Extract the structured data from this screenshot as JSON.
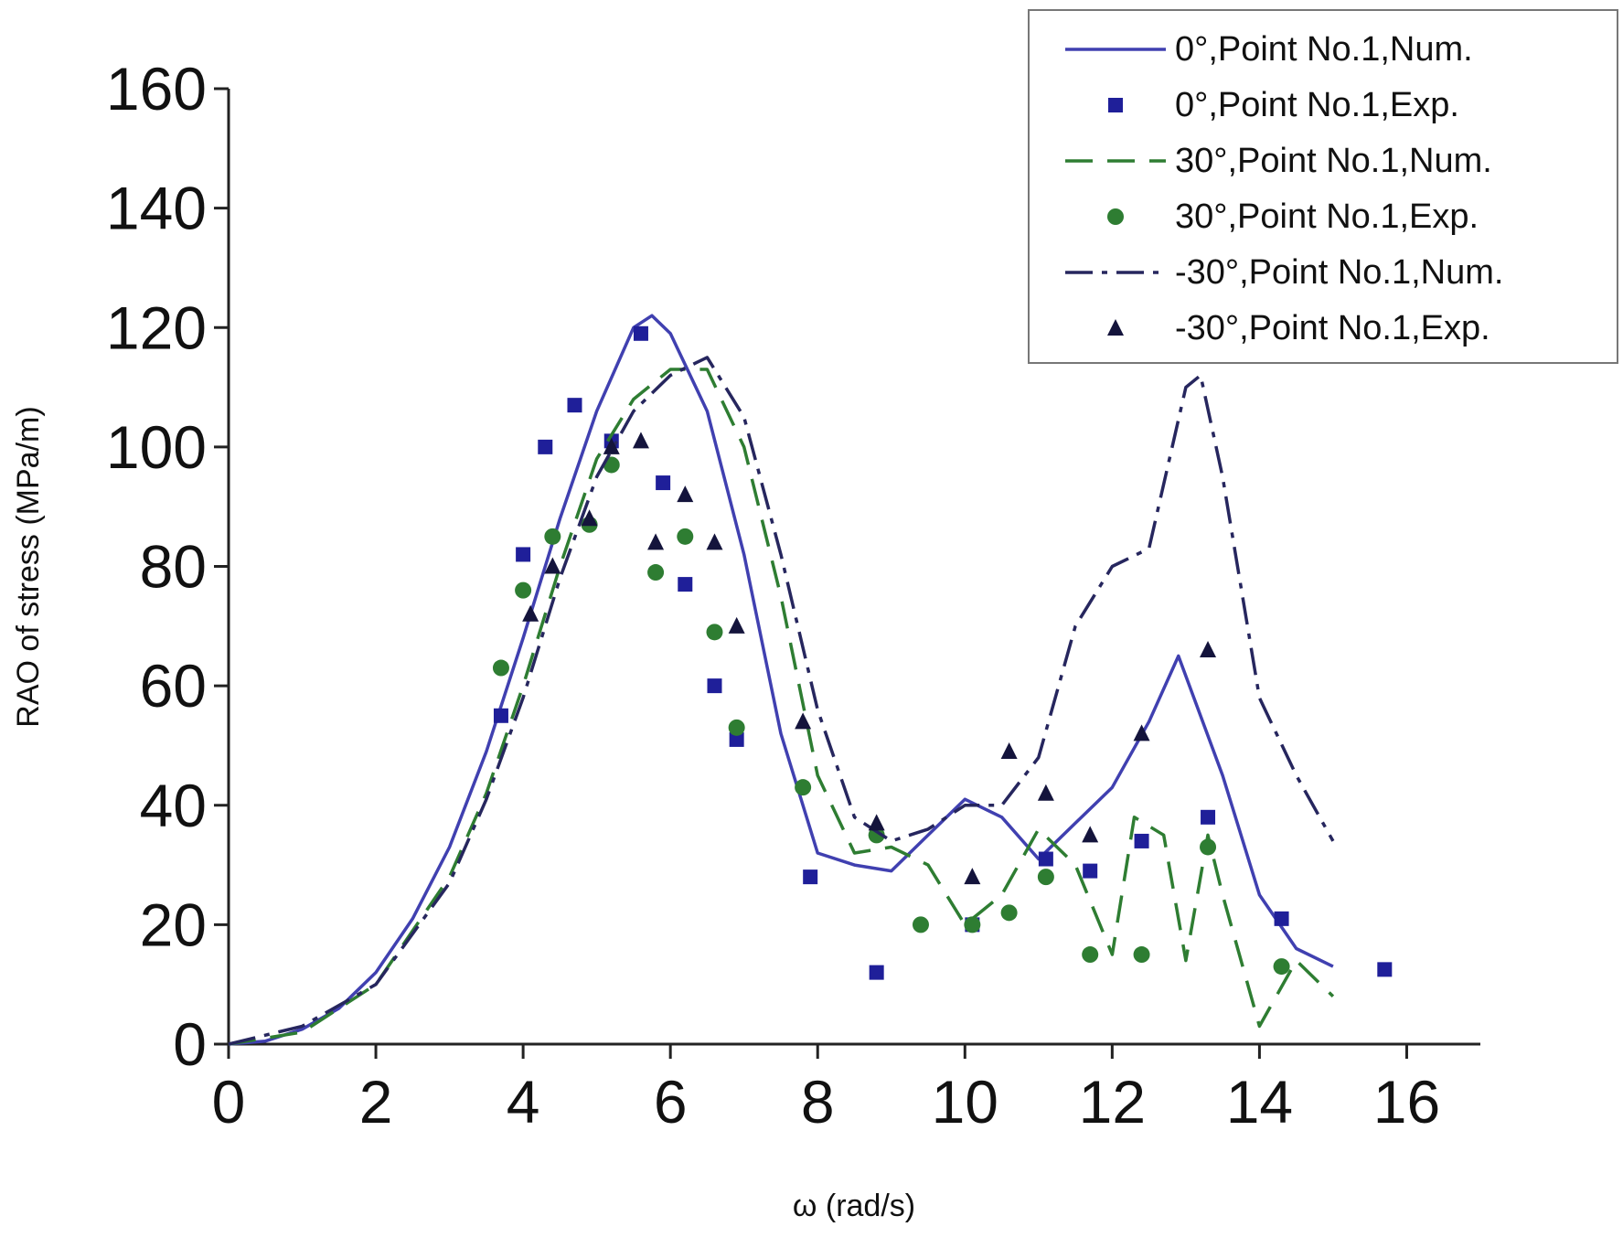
{
  "chart_data": {
    "type": "line",
    "x_label": "ω (rad/s)",
    "y_label": "RAO of stress (MPa/m)",
    "xlim": [
      0,
      17
    ],
    "ylim": [
      0,
      160
    ],
    "xticks": [
      0,
      2,
      4,
      6,
      8,
      10,
      12,
      14,
      16
    ],
    "yticks": [
      0,
      20,
      40,
      60,
      80,
      100,
      120,
      140,
      160
    ],
    "legend": "upper right",
    "series": [
      {
        "name": "0°,Point No.1,Num.",
        "mode": "line",
        "dash": "solid",
        "color": "#4040b0",
        "x": [
          0,
          0.5,
          1,
          1.5,
          2,
          2.5,
          3,
          3.5,
          4,
          4.5,
          5,
          5.5,
          5.75,
          6,
          6.5,
          7,
          7.5,
          8,
          8.5,
          9,
          9.5,
          10,
          10.5,
          11,
          11.5,
          12,
          12.5,
          12.9,
          13.5,
          14,
          14.5,
          15
        ],
        "values": [
          0,
          0.5,
          2.5,
          6,
          12,
          21,
          33,
          49,
          68,
          88,
          106,
          120,
          122,
          119,
          106,
          82,
          52,
          32,
          30,
          29,
          35,
          41,
          38,
          31,
          37,
          43,
          54,
          65,
          45,
          25,
          16,
          13
        ]
      },
      {
        "name": "0°,Point No.1,Exp.",
        "mode": "marker",
        "marker": "square",
        "color": "#1f1f99",
        "x": [
          3.7,
          4,
          4.3,
          4.7,
          5.2,
          5.6,
          5.9,
          6.2,
          6.6,
          6.9,
          7.9,
          8.8,
          10.1,
          11.1,
          11.7,
          12.4,
          13.3,
          14.3,
          15.7
        ],
        "values": [
          55,
          82,
          100,
          107,
          101,
          119,
          94,
          77,
          60,
          51,
          28,
          12,
          20,
          31,
          29,
          34,
          38,
          21,
          12.5
        ]
      },
      {
        "name": "30°,Point No.1,Num.",
        "mode": "line",
        "dash": "dash",
        "color": "#2e7d32",
        "x": [
          0,
          1,
          2,
          3,
          3.5,
          4,
          4.5,
          5,
          5.5,
          6,
          6.5,
          7,
          7.5,
          8,
          8.5,
          9,
          9.5,
          10,
          10.5,
          11,
          11.5,
          12,
          12.3,
          12.7,
          13,
          13.3,
          13.5,
          14,
          14.5,
          15
        ],
        "values": [
          0,
          2,
          10,
          28,
          42,
          60,
          80,
          98,
          108,
          113,
          113,
          100,
          75,
          45,
          32,
          33,
          30,
          20,
          25,
          36,
          30,
          15,
          38,
          35,
          14,
          35,
          25,
          3,
          14,
          8
        ]
      },
      {
        "name": "30°,Point No.1,Exp.",
        "mode": "marker",
        "marker": "circle",
        "color": "#2e7d32",
        "x": [
          3.7,
          4,
          4.4,
          4.9,
          5.2,
          5.8,
          6.2,
          6.6,
          6.9,
          7.8,
          8.8,
          9.4,
          10.1,
          10.6,
          11.1,
          11.7,
          12.4,
          13.3,
          14.3
        ],
        "values": [
          63,
          76,
          85,
          87,
          97,
          79,
          85,
          69,
          53,
          43,
          35,
          20,
          20,
          22,
          28,
          15,
          15,
          33,
          13
        ]
      },
      {
        "name": "-30°,Point No.1,Num.",
        "mode": "line",
        "dash": "dashdot",
        "color": "#26265e",
        "x": [
          0,
          1,
          2,
          3,
          3.5,
          4,
          4.5,
          5,
          5.5,
          6,
          6.5,
          7,
          7.5,
          8,
          8.5,
          9,
          9.5,
          10,
          10.5,
          11,
          11.5,
          12,
          12.5,
          13,
          13.2,
          13.5,
          14,
          14.5,
          15
        ],
        "values": [
          0,
          3,
          10,
          27,
          41,
          58,
          78,
          95,
          106,
          112,
          115,
          105,
          82,
          56,
          38,
          34,
          36,
          40,
          40,
          48,
          70,
          80,
          83,
          110,
          112,
          95,
          58,
          45,
          34
        ]
      },
      {
        "name": "-30°,Point No.1,Exp.",
        "mode": "marker",
        "marker": "triangle",
        "color": "#14143c",
        "x": [
          4.1,
          4.4,
          4.9,
          5.2,
          5.6,
          5.8,
          6.2,
          6.6,
          6.9,
          7.8,
          8.8,
          10.1,
          10.6,
          11.1,
          11.7,
          12.4,
          13.3
        ],
        "values": [
          72,
          80,
          88,
          100,
          101,
          84,
          92,
          84,
          70,
          54,
          37,
          28,
          49,
          42,
          35,
          52,
          66
        ]
      }
    ]
  }
}
